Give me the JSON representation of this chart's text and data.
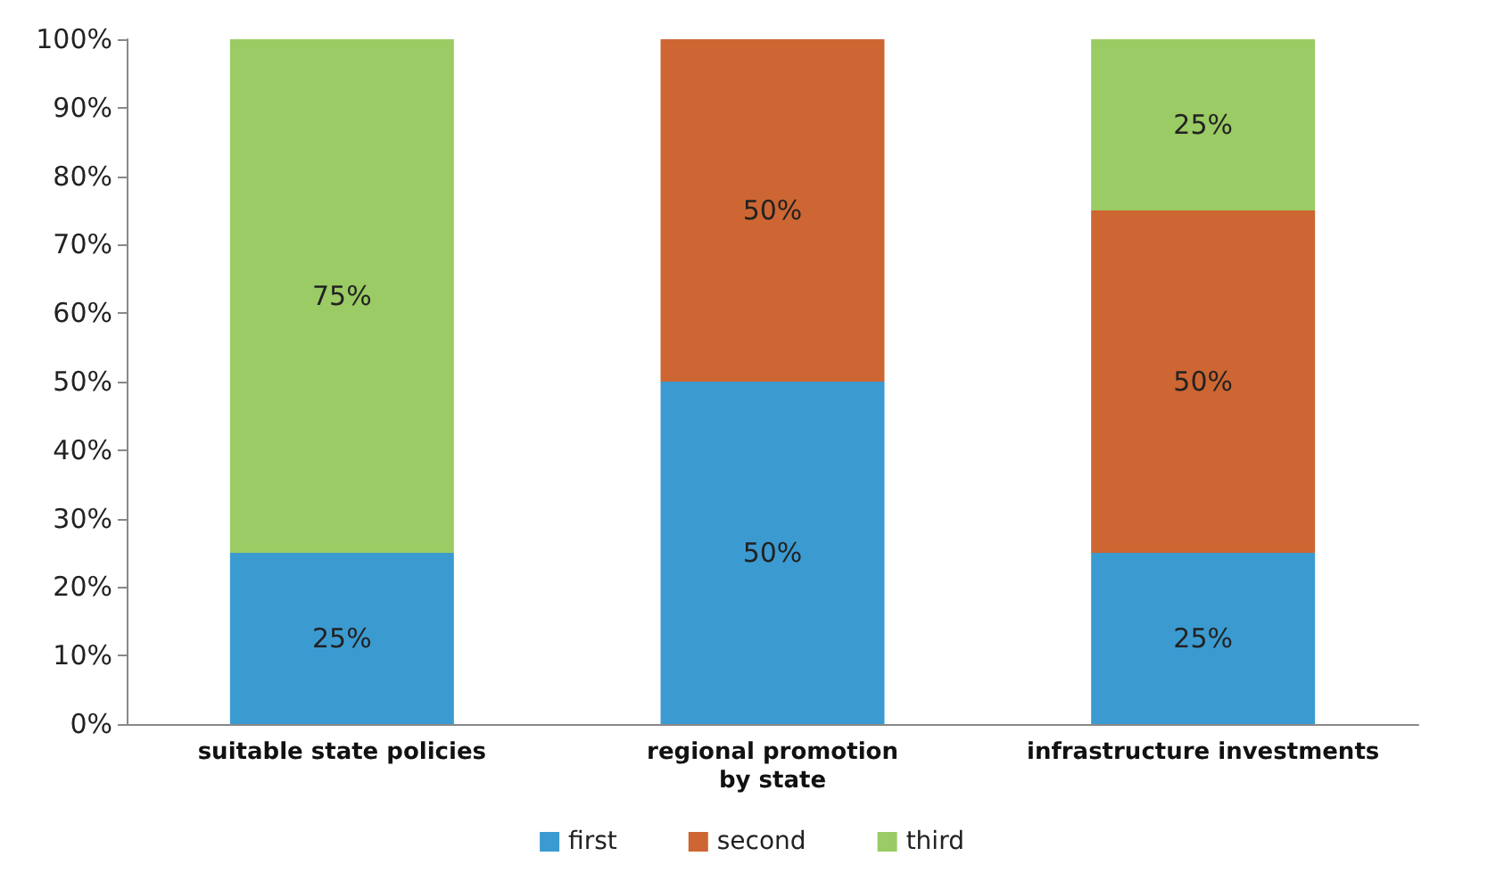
{
  "chart_data": {
    "type": "bar",
    "stacked": true,
    "categories": [
      "suitable state policies",
      "regional promotion\nby state",
      "infrastructure investments"
    ],
    "series": [
      {
        "name": "first",
        "color": "#3b9bd1",
        "values": [
          25,
          50,
          25
        ],
        "value_labels": [
          "25%",
          "50%",
          "25%"
        ]
      },
      {
        "name": "second",
        "color": "#cd6632",
        "values": [
          0,
          50,
          50
        ],
        "value_labels": [
          null,
          "50%",
          "50%"
        ]
      },
      {
        "name": "third",
        "color": "#9bcb64",
        "values": [
          75,
          0,
          25
        ],
        "value_labels": [
          "75%",
          null,
          "25%"
        ]
      }
    ],
    "ylim": [
      0,
      100
    ],
    "yticks": [
      {
        "value": 0,
        "label": "0%"
      },
      {
        "value": 10,
        "label": "10%"
      },
      {
        "value": 20,
        "label": "20%"
      },
      {
        "value": 30,
        "label": "30%"
      },
      {
        "value": 40,
        "label": "40%"
      },
      {
        "value": 50,
        "label": "50%"
      },
      {
        "value": 60,
        "label": "60%"
      },
      {
        "value": 70,
        "label": "70%"
      },
      {
        "value": 80,
        "label": "80%"
      },
      {
        "value": 90,
        "label": "90%"
      },
      {
        "value": 100,
        "label": "100%"
      }
    ],
    "grid": false,
    "legend": "bottom"
  }
}
